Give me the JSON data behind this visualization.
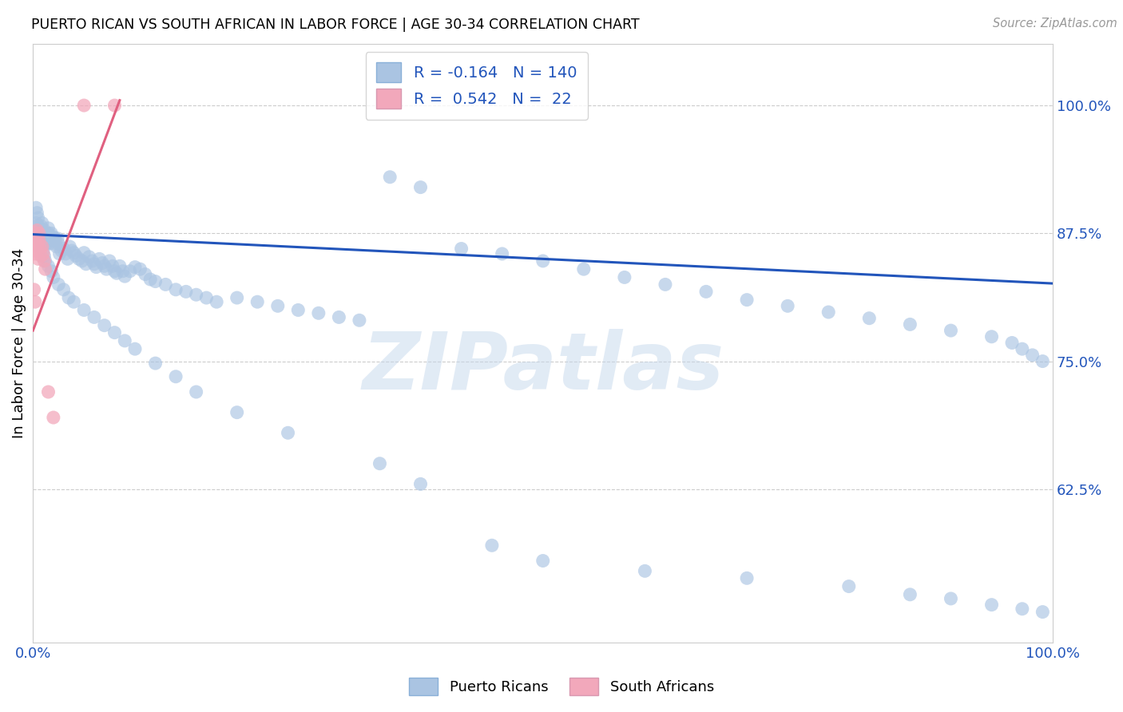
{
  "title": "PUERTO RICAN VS SOUTH AFRICAN IN LABOR FORCE | AGE 30-34 CORRELATION CHART",
  "source": "Source: ZipAtlas.com",
  "ylabel": "In Labor Force | Age 30-34",
  "blue_R": -0.164,
  "blue_N": 140,
  "pink_R": 0.542,
  "pink_N": 22,
  "blue_color": "#aac4e2",
  "pink_color": "#f2a8bb",
  "blue_line_color": "#2255bb",
  "pink_line_color": "#e06080",
  "legend_blue_label": "Puerto Ricans",
  "legend_pink_label": "South Africans",
  "watermark": "ZIPatlas",
  "xlim": [
    0.0,
    1.0
  ],
  "ylim": [
    0.475,
    1.06
  ],
  "ytick_vals": [
    1.0,
    0.875,
    0.75,
    0.625
  ],
  "ytick_labels": [
    "100.0%",
    "87.5%",
    "75.0%",
    "62.5%"
  ],
  "blue_x": [
    0.003,
    0.004,
    0.005,
    0.005,
    0.006,
    0.007,
    0.008,
    0.008,
    0.009,
    0.01,
    0.01,
    0.011,
    0.011,
    0.012,
    0.012,
    0.013,
    0.013,
    0.014,
    0.014,
    0.015,
    0.015,
    0.016,
    0.016,
    0.017,
    0.018,
    0.018,
    0.019,
    0.02,
    0.021,
    0.022,
    0.023,
    0.024,
    0.025,
    0.026,
    0.028,
    0.03,
    0.032,
    0.034,
    0.036,
    0.038,
    0.04,
    0.042,
    0.045,
    0.048,
    0.05,
    0.052,
    0.055,
    0.058,
    0.06,
    0.062,
    0.065,
    0.068,
    0.07,
    0.072,
    0.075,
    0.078,
    0.08,
    0.082,
    0.085,
    0.088,
    0.09,
    0.095,
    0.1,
    0.105,
    0.11,
    0.115,
    0.12,
    0.13,
    0.14,
    0.15,
    0.16,
    0.17,
    0.18,
    0.2,
    0.22,
    0.24,
    0.26,
    0.28,
    0.3,
    0.32,
    0.35,
    0.38,
    0.42,
    0.46,
    0.5,
    0.54,
    0.58,
    0.62,
    0.66,
    0.7,
    0.74,
    0.78,
    0.82,
    0.86,
    0.9,
    0.94,
    0.96,
    0.97,
    0.98,
    0.99,
    0.003,
    0.004,
    0.005,
    0.006,
    0.007,
    0.008,
    0.009,
    0.01,
    0.011,
    0.012,
    0.015,
    0.018,
    0.02,
    0.025,
    0.03,
    0.035,
    0.04,
    0.05,
    0.06,
    0.07,
    0.08,
    0.09,
    0.1,
    0.12,
    0.14,
    0.16,
    0.2,
    0.25,
    0.34,
    0.38,
    0.45,
    0.5,
    0.6,
    0.7,
    0.8,
    0.86,
    0.9,
    0.94,
    0.97,
    0.99
  ],
  "blue_y": [
    0.9,
    0.895,
    0.89,
    0.882,
    0.878,
    0.875,
    0.882,
    0.876,
    0.885,
    0.873,
    0.87,
    0.878,
    0.872,
    0.868,
    0.875,
    0.87,
    0.865,
    0.873,
    0.868,
    0.88,
    0.875,
    0.872,
    0.865,
    0.87,
    0.875,
    0.868,
    0.872,
    0.865,
    0.87,
    0.868,
    0.862,
    0.87,
    0.865,
    0.855,
    0.858,
    0.86,
    0.855,
    0.85,
    0.862,
    0.858,
    0.856,
    0.853,
    0.85,
    0.848,
    0.856,
    0.845,
    0.852,
    0.848,
    0.845,
    0.842,
    0.85,
    0.846,
    0.843,
    0.84,
    0.848,
    0.843,
    0.838,
    0.836,
    0.843,
    0.838,
    0.833,
    0.838,
    0.842,
    0.84,
    0.835,
    0.83,
    0.828,
    0.825,
    0.82,
    0.818,
    0.815,
    0.812,
    0.808,
    0.812,
    0.808,
    0.804,
    0.8,
    0.797,
    0.793,
    0.79,
    0.93,
    0.92,
    0.86,
    0.855,
    0.848,
    0.84,
    0.832,
    0.825,
    0.818,
    0.81,
    0.804,
    0.798,
    0.792,
    0.786,
    0.78,
    0.774,
    0.768,
    0.762,
    0.756,
    0.75,
    0.885,
    0.882,
    0.878,
    0.875,
    0.87,
    0.867,
    0.862,
    0.858,
    0.853,
    0.848,
    0.843,
    0.838,
    0.832,
    0.825,
    0.82,
    0.812,
    0.808,
    0.8,
    0.793,
    0.785,
    0.778,
    0.77,
    0.762,
    0.748,
    0.735,
    0.72,
    0.7,
    0.68,
    0.65,
    0.63,
    0.57,
    0.555,
    0.545,
    0.538,
    0.53,
    0.522,
    0.518,
    0.512,
    0.508,
    0.505
  ],
  "pink_x": [
    0.001,
    0.002,
    0.002,
    0.003,
    0.003,
    0.004,
    0.005,
    0.005,
    0.006,
    0.006,
    0.007,
    0.008,
    0.009,
    0.01,
    0.011,
    0.012,
    0.015,
    0.02,
    0.05,
    0.08,
    0.001,
    0.002
  ],
  "pink_y": [
    0.876,
    0.862,
    0.855,
    0.87,
    0.858,
    0.878,
    0.865,
    0.85,
    0.875,
    0.868,
    0.86,
    0.853,
    0.862,
    0.855,
    0.848,
    0.84,
    0.72,
    0.695,
    1.0,
    1.0,
    0.82,
    0.808
  ],
  "blue_line_x": [
    0.0,
    1.0
  ],
  "blue_line_y": [
    0.874,
    0.826
  ],
  "pink_line_x": [
    0.0,
    0.085
  ],
  "pink_line_y": [
    0.78,
    1.005
  ]
}
